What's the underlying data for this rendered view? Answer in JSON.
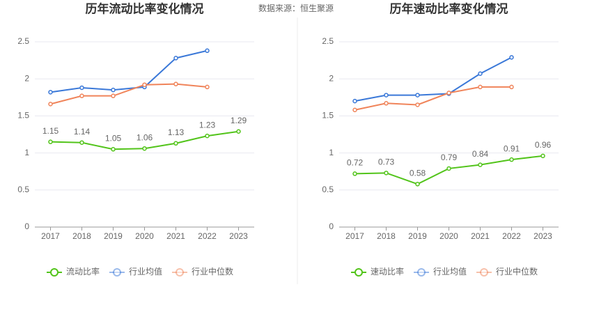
{
  "source": "数据来源：恒生聚源",
  "chart_data": [
    {
      "type": "line",
      "title": "历年流动比率变化情况",
      "categories": [
        "2017",
        "2018",
        "2019",
        "2020",
        "2021",
        "2022",
        "2023"
      ],
      "ylim": [
        0,
        2.5
      ],
      "yticks": [
        0,
        0.5,
        1,
        1.5,
        2,
        2.5
      ],
      "grid": true,
      "series": [
        {
          "name": "流动比率",
          "color": "#52c41a",
          "show_labels": true,
          "values": [
            1.15,
            1.14,
            1.05,
            1.06,
            1.13,
            1.23,
            1.29
          ]
        },
        {
          "name": "行业均值",
          "color": "#3a78d8",
          "values": [
            1.82,
            1.88,
            1.85,
            1.89,
            2.28,
            2.38,
            null
          ]
        },
        {
          "name": "行业中位数",
          "color": "#f0845a",
          "values": [
            1.66,
            1.77,
            1.77,
            1.92,
            1.93,
            1.89,
            null
          ]
        }
      ]
    },
    {
      "type": "line",
      "title": "历年速动比率变化情况",
      "categories": [
        "2017",
        "2018",
        "2019",
        "2020",
        "2021",
        "2022",
        "2023"
      ],
      "ylim": [
        0,
        2.5
      ],
      "yticks": [
        0,
        0.5,
        1,
        1.5,
        2,
        2.5
      ],
      "grid": true,
      "series": [
        {
          "name": "速动比率",
          "color": "#52c41a",
          "show_labels": true,
          "values": [
            0.72,
            0.73,
            0.58,
            0.79,
            0.84,
            0.91,
            0.96
          ]
        },
        {
          "name": "行业均值",
          "color": "#3a78d8",
          "values": [
            1.7,
            1.78,
            1.78,
            1.8,
            2.07,
            2.29,
            null
          ]
        },
        {
          "name": "行业中位数",
          "color": "#f0845a",
          "values": [
            1.58,
            1.67,
            1.65,
            1.81,
            1.89,
            1.89,
            null
          ]
        }
      ]
    }
  ]
}
